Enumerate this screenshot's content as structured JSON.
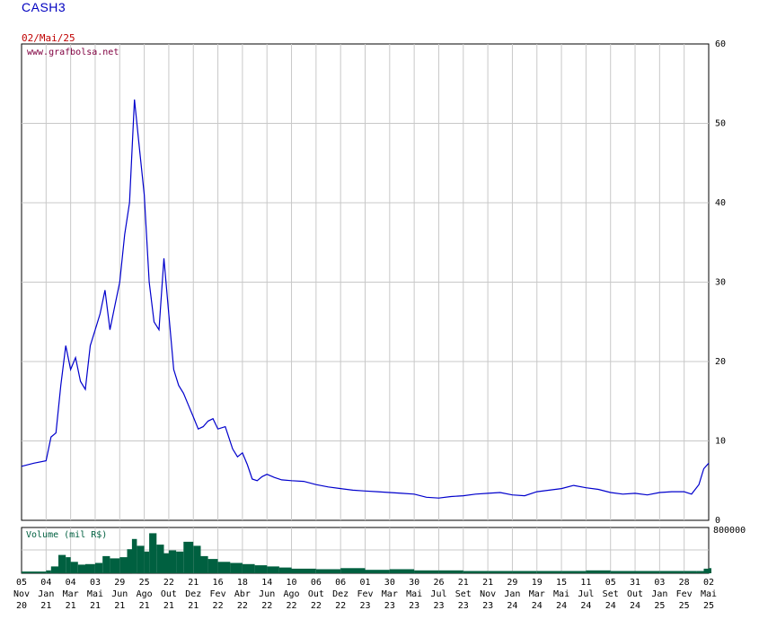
{
  "header": {
    "ticker": "CASH3",
    "date": "02/Mai/25"
  },
  "chart_data": [
    {
      "type": "line",
      "ylabel": "",
      "source_label": "www.grafbolsa.net",
      "ylim": [
        0,
        60
      ],
      "y_ticks": [
        "0",
        "10",
        "20",
        "30",
        "40",
        "50",
        "60"
      ],
      "y_tick_values": [
        0,
        10,
        20,
        30,
        40,
        50,
        60
      ],
      "grid": true,
      "color": "#0000cc",
      "x_tick_labels": [
        [
          "05",
          "Nov",
          "20"
        ],
        [
          "04",
          "Jan",
          "21"
        ],
        [
          "04",
          "Mar",
          "21"
        ],
        [
          "03",
          "Mai",
          "21"
        ],
        [
          "29",
          "Jun",
          "21"
        ],
        [
          "25",
          "Ago",
          "21"
        ],
        [
          "22",
          "Out",
          "21"
        ],
        [
          "21",
          "Dez",
          "21"
        ],
        [
          "16",
          "Fev",
          "22"
        ],
        [
          "18",
          "Abr",
          "22"
        ],
        [
          "14",
          "Jun",
          "22"
        ],
        [
          "10",
          "Ago",
          "22"
        ],
        [
          "06",
          "Out",
          "22"
        ],
        [
          "06",
          "Dez",
          "22"
        ],
        [
          "01",
          "Fev",
          "23"
        ],
        [
          "30",
          "Mar",
          "23"
        ],
        [
          "30",
          "Mai",
          "23"
        ],
        [
          "26",
          "Jul",
          "23"
        ],
        [
          "21",
          "Set",
          "23"
        ],
        [
          "21",
          "Nov",
          "23"
        ],
        [
          "29",
          "Jan",
          "24"
        ],
        [
          "19",
          "Mar",
          "24"
        ],
        [
          "15",
          "Mai",
          "24"
        ],
        [
          "11",
          "Jul",
          "24"
        ],
        [
          "05",
          "Set",
          "24"
        ],
        [
          "31",
          "Out",
          "24"
        ],
        [
          "03",
          "Jan",
          "25"
        ],
        [
          "28",
          "Fev",
          "25"
        ],
        [
          "02",
          "Mai",
          "25"
        ]
      ],
      "series": [
        {
          "x_index": [
            0,
            0.5,
            1,
            1.2,
            1.4,
            1.6,
            1.8,
            2,
            2.2,
            2.4,
            2.6,
            2.8,
            3,
            3.2,
            3.4,
            3.6,
            3.8,
            4,
            4.2,
            4.4,
            4.6,
            4.8,
            5,
            5.2,
            5.4,
            5.6,
            5.8,
            6,
            6.2,
            6.4,
            6.6,
            6.8,
            7,
            7.2,
            7.4,
            7.6,
            7.8,
            8,
            8.3,
            8.6,
            8.8,
            9,
            9.2,
            9.4,
            9.6,
            9.8,
            10,
            10.3,
            10.6,
            11,
            11.5,
            12,
            12.5,
            13,
            13.5,
            14,
            14.5,
            15,
            15.5,
            16,
            16.5,
            17,
            17.5,
            18,
            18.5,
            19,
            19.5,
            20,
            20.5,
            21,
            21.5,
            22,
            22.5,
            23,
            23.5,
            24,
            24.5,
            25,
            25.5,
            26,
            26.5,
            27,
            27.3,
            27.6,
            27.8,
            28
          ],
          "values": [
            6.8,
            7.2,
            7.5,
            10.5,
            11,
            17,
            22,
            19,
            20.5,
            17.5,
            16.5,
            22,
            24,
            26,
            29,
            24,
            27,
            30,
            36,
            40,
            53,
            47,
            41,
            30,
            25,
            24,
            33,
            26,
            19,
            17,
            16,
            14.5,
            13,
            11.5,
            11.8,
            12.5,
            12.8,
            11.5,
            11.8,
            9,
            8,
            8.5,
            7,
            5.2,
            5,
            5.5,
            5.8,
            5.4,
            5.1,
            5,
            4.9,
            4.5,
            4.2,
            4.0,
            3.8,
            3.7,
            3.6,
            3.5,
            3.4,
            3.3,
            2.9,
            2.8,
            3.0,
            3.1,
            3.3,
            3.4,
            3.5,
            3.2,
            3.1,
            3.6,
            3.8,
            4.0,
            4.4,
            4.1,
            3.9,
            3.5,
            3.3,
            3.4,
            3.2,
            3.5,
            3.6,
            3.6,
            3.3,
            4.5,
            6.5,
            7.2
          ]
        }
      ]
    },
    {
      "type": "bar",
      "ylabel": "Volume (mil R$)",
      "y_ticks": [
        "800000"
      ],
      "ylim": [
        0,
        800000
      ],
      "color": "#006040",
      "series": [
        {
          "x_index": [
            0,
            1,
            1.2,
            1.5,
            1.8,
            2,
            2.3,
            2.6,
            3,
            3.3,
            3.6,
            4,
            4.3,
            4.5,
            4.7,
            5,
            5.2,
            5.5,
            5.8,
            6,
            6.3,
            6.6,
            7,
            7.3,
            7.6,
            8,
            8.5,
            9,
            9.5,
            10,
            10.5,
            11,
            12,
            13,
            14,
            15,
            16,
            17,
            18,
            19,
            20,
            21,
            22,
            23,
            24,
            25,
            26,
            27,
            27.5,
            27.8,
            28
          ],
          "values": [
            30000,
            50000,
            120000,
            320000,
            280000,
            200000,
            150000,
            160000,
            180000,
            300000,
            260000,
            280000,
            420000,
            600000,
            480000,
            380000,
            700000,
            500000,
            350000,
            400000,
            380000,
            550000,
            480000,
            300000,
            250000,
            200000,
            180000,
            160000,
            140000,
            120000,
            100000,
            80000,
            70000,
            90000,
            60000,
            70000,
            50000,
            50000,
            40000,
            40000,
            40000,
            40000,
            40000,
            50000,
            40000,
            40000,
            40000,
            40000,
            40000,
            80000,
            90000
          ]
        }
      ]
    }
  ]
}
